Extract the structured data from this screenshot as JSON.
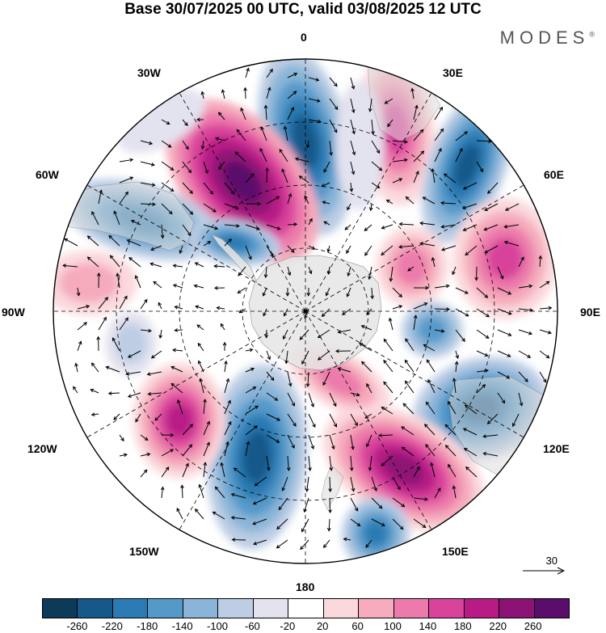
{
  "title": "Base 30/07/2025 00 UTC, valid 03/08/2025 12 UTC",
  "brand": "MODES",
  "brand_mark": "®",
  "longitude_labels": {
    "lon_0": "0",
    "lon_30e": "30E",
    "lon_60e": "60E",
    "lon_90e": "90E",
    "lon_120e": "120E",
    "lon_150e": "150E",
    "lon_180": "180",
    "lon_150w": "150W",
    "lon_120w": "120W",
    "lon_90w": "90W",
    "lon_60w": "60W",
    "lon_30w": "30W"
  },
  "reference_vector": "30",
  "colorbar": {
    "colors": [
      "#0e3a5a",
      "#16588a",
      "#2b7ab3",
      "#5599c9",
      "#8ab5d8",
      "#bccde4",
      "#e3e2ef",
      "#ffffff",
      "#fbd8dc",
      "#f5abbc",
      "#ec7aab",
      "#d9439b",
      "#b81b86",
      "#8d1275",
      "#5a0d6a"
    ],
    "ticks": [
      "-260",
      "-220",
      "-180",
      "-140",
      "-100",
      "-60",
      "-20",
      "20",
      "60",
      "100",
      "140",
      "180",
      "220",
      "260"
    ]
  },
  "chart_data": {
    "type": "polar stereographic map (Southern Hemisphere)",
    "projection_center": "South Pole",
    "field": "shaded anomaly with wind vectors",
    "colorbar_levels": [
      -260,
      -220,
      -180,
      -140,
      -100,
      -60,
      -20,
      20,
      60,
      100,
      140,
      180,
      220,
      260
    ],
    "reference_vector_magnitude": 30,
    "anomaly_centers": [
      {
        "sign": "negative",
        "lon": "5E"
      },
      {
        "sign": "positive",
        "lon": "25W"
      },
      {
        "sign": "positive",
        "lon": "30E"
      },
      {
        "sign": "negative",
        "lon": "55E"
      },
      {
        "sign": "positive",
        "lon": "75E"
      },
      {
        "sign": "negative",
        "lon": "95E"
      },
      {
        "sign": "negative",
        "lon": "115E"
      },
      {
        "sign": "positive",
        "lon": "145E"
      },
      {
        "sign": "negative",
        "lon": "160E"
      },
      {
        "sign": "negative",
        "lon": "165W"
      },
      {
        "sign": "positive",
        "lon": "130W"
      },
      {
        "sign": "negative",
        "lon": "95W"
      },
      {
        "sign": "negative",
        "lon": "65W"
      },
      {
        "sign": "negative",
        "lon": "50W"
      }
    ]
  }
}
